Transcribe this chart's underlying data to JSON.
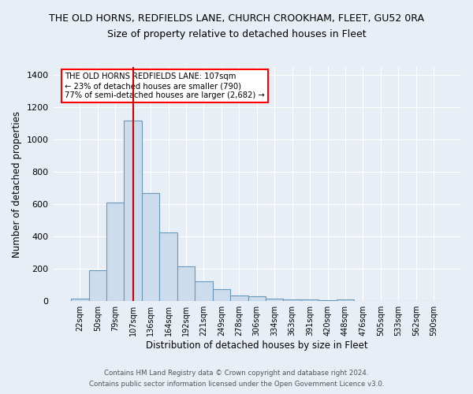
{
  "title": "THE OLD HORNS, REDFIELDS LANE, CHURCH CROOKHAM, FLEET, GU52 0RA",
  "subtitle": "Size of property relative to detached houses in Fleet",
  "xlabel": "Distribution of detached houses by size in Fleet",
  "ylabel": "Number of detached properties",
  "bar_labels": [
    "22sqm",
    "50sqm",
    "79sqm",
    "107sqm",
    "136sqm",
    "164sqm",
    "192sqm",
    "221sqm",
    "249sqm",
    "278sqm",
    "306sqm",
    "334sqm",
    "363sqm",
    "391sqm",
    "420sqm",
    "448sqm",
    "476sqm",
    "505sqm",
    "533sqm",
    "562sqm",
    "590sqm"
  ],
  "bar_values": [
    15,
    190,
    610,
    1120,
    670,
    425,
    215,
    125,
    75,
    35,
    30,
    15,
    10,
    10,
    5,
    10,
    0,
    0,
    0,
    0,
    0
  ],
  "bar_color": "#ccdcec",
  "bar_edge_color": "#6699bb",
  "vline_x": 3,
  "vline_color": "#cc0000",
  "ylim": [
    0,
    1450
  ],
  "yticks": [
    0,
    200,
    400,
    600,
    800,
    1000,
    1200,
    1400
  ],
  "annotation_text": "THE OLD HORNS REDFIELDS LANE: 107sqm\n← 23% of detached houses are smaller (790)\n77% of semi-detached houses are larger (2,682) →",
  "footnote1": "Contains HM Land Registry data © Crown copyright and database right 2024.",
  "footnote2": "Contains public sector information licensed under the Open Government Licence v3.0.",
  "bg_color": "#e8eef5",
  "plot_bg_color": "#e8eef5",
  "title_fontsize": 9,
  "subtitle_fontsize": 9
}
